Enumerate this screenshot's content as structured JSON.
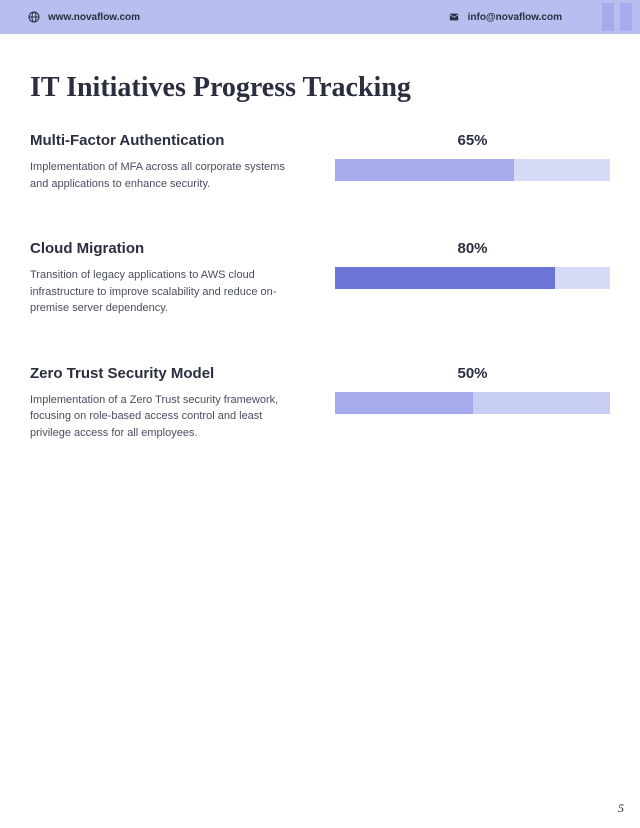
{
  "header": {
    "website": "www.novaflow.com",
    "email": "info@novaflow.com",
    "bar_color": "#b8bef0",
    "accent_color": "#a5abec"
  },
  "page_title": "IT Initiatives Progress Tracking",
  "initiatives": [
    {
      "title": "Multi-Factor Authentication",
      "description": "Implementation of MFA across all corporate systems and applications to enhance security.",
      "percent": "65%",
      "percent_value": 65,
      "fill_color": "#a5abec",
      "bg_color": "#d7dbf7"
    },
    {
      "title": "Cloud Migration",
      "description": "Transition of legacy applications to AWS cloud infrastructure to improve scalability and reduce on-premise server dependency.",
      "percent": "80%",
      "percent_value": 80,
      "fill_color": "#6b75d6",
      "bg_color": "#d7dbf7"
    },
    {
      "title": "Zero Trust Security Model",
      "description": "Implementation of a Zero Trust security framework, focusing on role-based access control and least privilege access for all employees.",
      "percent": "50%",
      "percent_value": 50,
      "fill_color": "#a5abec",
      "bg_color": "#c9cff4"
    }
  ],
  "page_number": "5",
  "colors": {
    "text_dark": "#2a2e3f",
    "text_body": "#4a4e5f",
    "background": "#ffffff"
  }
}
